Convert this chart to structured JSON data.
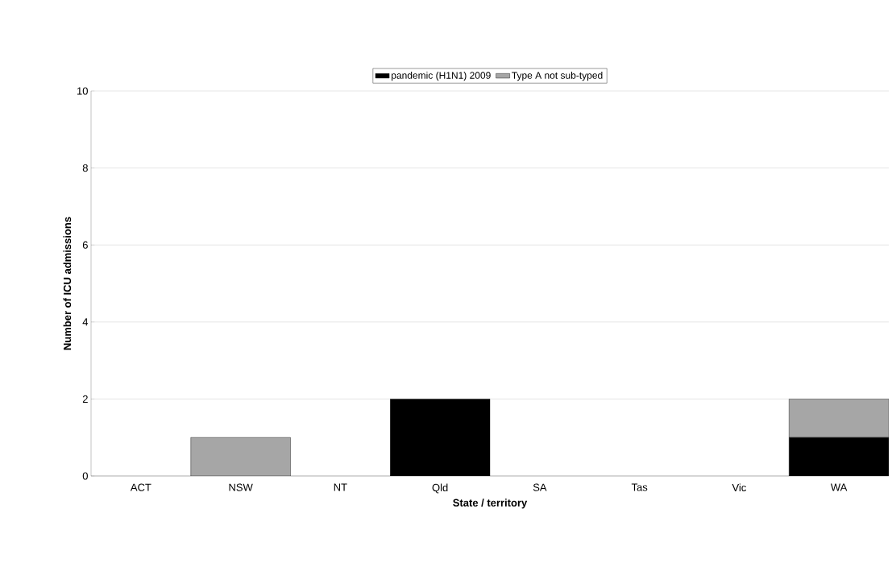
{
  "chart_data": {
    "type": "bar",
    "stacked": true,
    "xlabel": "State / territory",
    "ylabel": "Number of ICU admissions",
    "categories": [
      "ACT",
      "NSW",
      "NT",
      "Qld",
      "SA",
      "Tas",
      "Vic",
      "WA"
    ],
    "series": [
      {
        "name": "pandemic (H1N1) 2009",
        "color": "#000000",
        "values": [
          0,
          0,
          0,
          2,
          0,
          0,
          0,
          1
        ]
      },
      {
        "name": "Type A not sub-typed",
        "color": "#a6a6a6",
        "values": [
          0,
          1,
          0,
          0,
          0,
          0,
          0,
          1
        ]
      }
    ],
    "ylim": [
      0,
      10
    ],
    "yticks": [
      0,
      2,
      4,
      6,
      8,
      10
    ],
    "grid": "y",
    "legend": "top"
  }
}
